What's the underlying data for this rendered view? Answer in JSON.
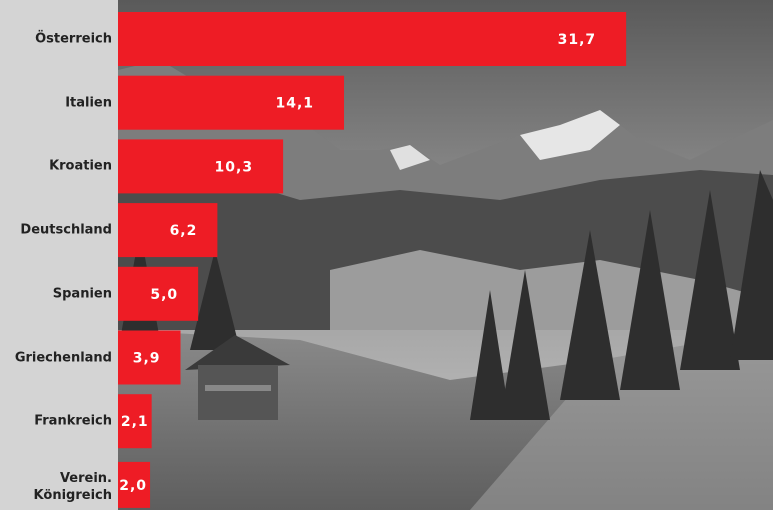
{
  "chart_data": {
    "type": "bar",
    "orientation": "horizontal",
    "categories": [
      "Österreich",
      "Italien",
      "Kroatien",
      "Deutschland",
      "Spanien",
      "Griechenland",
      "Frankreich",
      "Verein.\nKönigreich"
    ],
    "values": [
      31.7,
      14.1,
      10.3,
      6.2,
      5.0,
      3.9,
      2.1,
      2.0
    ],
    "value_labels": [
      "31,7",
      "14,1",
      "10,3",
      "6,2",
      "5,0",
      "3,9",
      "2,1",
      "2,0"
    ],
    "color": "#ee1c25"
  }
}
